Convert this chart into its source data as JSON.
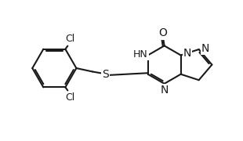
{
  "bg_color": "#ffffff",
  "line_color": "#1a1a1a",
  "bond_width": 1.5,
  "font_size": 9,
  "figsize": [
    3.1,
    1.8
  ],
  "dpi": 100,
  "xlim": [
    0,
    10
  ],
  "ylim": [
    0,
    6
  ]
}
